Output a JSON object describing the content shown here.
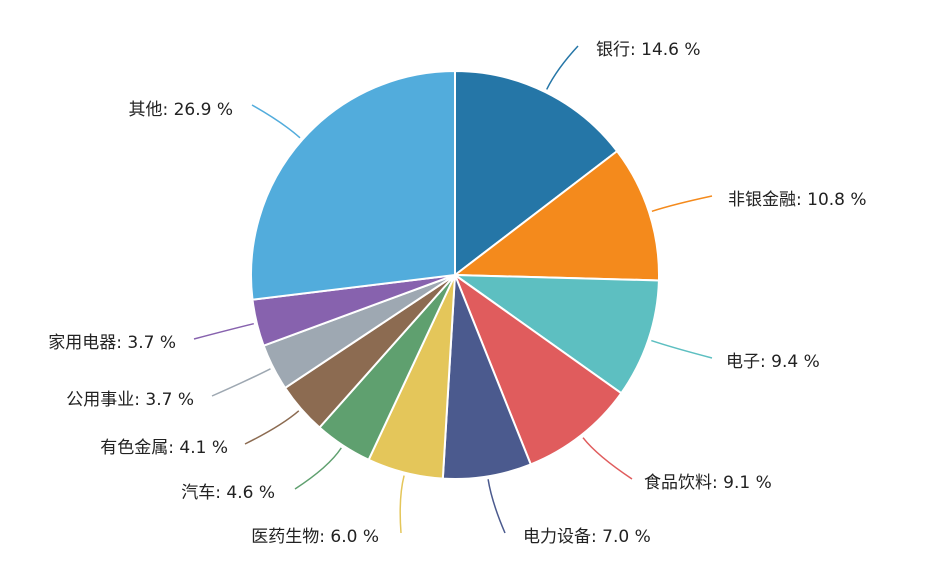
{
  "chart_data": {
    "type": "pie",
    "unit": "%",
    "slices": [
      {
        "label": "银行",
        "value": 14.6,
        "display": "银行: 14.6 %",
        "color": "#2576a7"
      },
      {
        "label": "非银金融",
        "value": 10.8,
        "display": "非银金融: 10.8 %",
        "color": "#f48a1c"
      },
      {
        "label": "电子",
        "value": 9.4,
        "display": "电子: 9.4 %",
        "color": "#5dbfc1"
      },
      {
        "label": "食品饮料",
        "value": 9.1,
        "display": "食品饮料: 9.1 %",
        "color": "#e05c5d"
      },
      {
        "label": "电力设备",
        "value": 7.0,
        "display": "电力设备: 7.0 %",
        "color": "#4b5a8e"
      },
      {
        "label": "医药生物",
        "value": 6.0,
        "display": "医药生物: 6.0 %",
        "color": "#e4c65a"
      },
      {
        "label": "汽车",
        "value": 4.6,
        "display": "汽车: 4.6 %",
        "color": "#5fa06f"
      },
      {
        "label": "有色金属",
        "value": 4.1,
        "display": "有色金属: 4.1 %",
        "color": "#8c6b51"
      },
      {
        "label": "公用事业",
        "value": 3.7,
        "display": "公用事业: 3.7 %",
        "color": "#9ea8b2"
      },
      {
        "label": "家用电器",
        "value": 3.7,
        "display": "家用电器: 3.7 %",
        "color": "#8762ae"
      },
      {
        "label": "其他",
        "value": 26.9,
        "display": "其他: 26.9 %",
        "color": "#52acdc"
      }
    ]
  }
}
